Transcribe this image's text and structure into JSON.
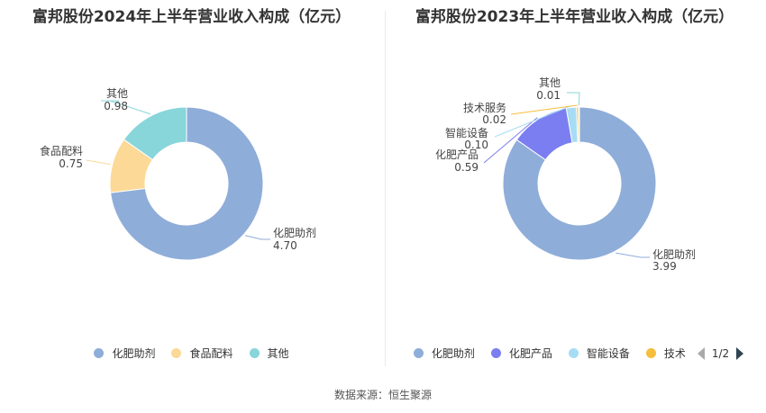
{
  "chart_data": [
    {
      "type": "pie",
      "title": "富邦股份2024年上半年营业收入构成（亿元）",
      "slices": [
        {
          "name": "化肥助剂",
          "value": 4.7,
          "label": "4.70",
          "color": "#8fadd9"
        },
        {
          "name": "食品配料",
          "value": 0.75,
          "label": "0.75",
          "color": "#fcd996"
        },
        {
          "name": "其他",
          "value": 0.98,
          "label": "0.98",
          "color": "#88d5da"
        }
      ],
      "legend": [
        "化肥助剂",
        "食品配料",
        "其他"
      ]
    },
    {
      "type": "pie",
      "title": "富邦股份2023年上半年营业收入构成（亿元）",
      "slices": [
        {
          "name": "化肥助剂",
          "value": 3.99,
          "label": "3.99",
          "color": "#8fadd9"
        },
        {
          "name": "化肥产品",
          "value": 0.59,
          "label": "0.59",
          "color": "#7b7ef0"
        },
        {
          "name": "智能设备",
          "value": 0.1,
          "label": "0.10",
          "color": "#a7dcf5"
        },
        {
          "name": "技术服务",
          "value": 0.02,
          "label": "0.02",
          "color": "#f5be3c"
        },
        {
          "name": "其他",
          "value": 0.01,
          "label": "0.01",
          "color": "#88d5da"
        }
      ],
      "legend": [
        "化肥助剂",
        "化肥产品",
        "智能设备",
        "技术"
      ],
      "pager": "1/2"
    }
  ],
  "source": "数据来源：恒生聚源"
}
